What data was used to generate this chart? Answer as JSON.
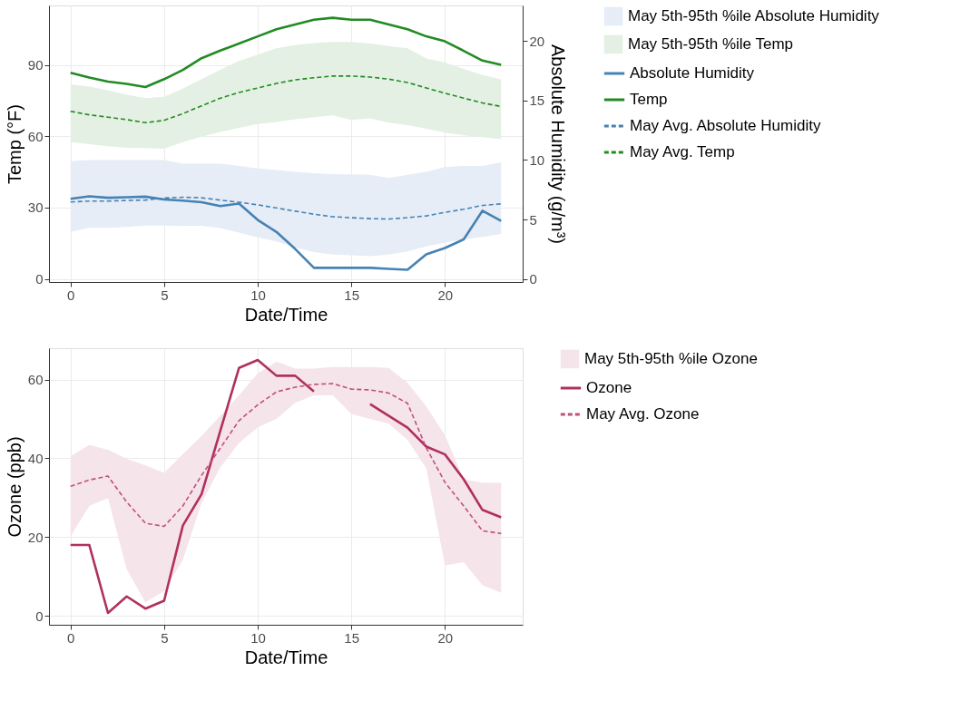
{
  "chart_data": [
    {
      "type": "line",
      "xlabel": "Date/Time",
      "ylabel": "Temp (°F)",
      "y2label": "Absolute Humidity (g/m³)",
      "x": [
        0,
        1,
        2,
        3,
        4,
        5,
        6,
        7,
        8,
        9,
        10,
        11,
        12,
        13,
        14,
        15,
        16,
        17,
        18,
        19,
        20,
        21,
        22,
        23
      ],
      "xlim": [
        -1.15,
        24.15
      ],
      "xticks": [
        0,
        5,
        10,
        15,
        20
      ],
      "ylim": [
        -1.3,
        115
      ],
      "yticks": [
        0,
        30,
        60,
        90
      ],
      "y2lim": [
        -0.26,
        23
      ],
      "y2ticks": [
        0,
        5,
        10,
        15,
        20
      ],
      "grid": true,
      "legend": "right",
      "series": [
        {
          "name": "May 5th-95th %ile Absolute Humidity",
          "type": "area",
          "axis": "y2",
          "color": "#e6edf6",
          "values": [
            null,
            null,
            null,
            null,
            null,
            null,
            null,
            null,
            null,
            null,
            null,
            null,
            null,
            null,
            null,
            null,
            null,
            null,
            null,
            null,
            null,
            null,
            null,
            null
          ]
        },
        {
          "name": "May 5th-95th %ile Temp",
          "type": "area",
          "color": "#e3f0e3",
          "values": [
            null,
            null,
            null,
            null,
            null,
            null,
            null,
            null,
            null,
            null,
            null,
            null,
            null,
            null,
            null,
            null,
            null,
            null,
            null,
            null,
            null,
            null,
            null,
            null
          ]
        },
        {
          "name": "Absolute Humidity",
          "axis": "y2",
          "color": "#4682b4",
          "line_style": "solid",
          "values": [
            6.74,
            6.95,
            6.82,
            6.87,
            6.92,
            6.68,
            6.58,
            6.45,
            6.13,
            6.34,
            4.96,
            3.95,
            2.52,
            0.93,
            0.93,
            0.93,
            0.93,
            0.85,
            0.77,
            2.07,
            2.6,
            3.32,
            5.73,
            4.88
          ]
        },
        {
          "name": "Temp",
          "color": "#228b22",
          "line_style": "solid",
          "values": [
            86.7,
            84.7,
            83,
            82,
            80.7,
            84,
            87.9,
            92.8,
            96,
            99,
            102,
            105,
            107,
            109,
            109.8,
            109,
            109,
            107,
            105,
            102,
            99.9,
            95.9,
            91.8,
            90
          ]
        },
        {
          "name": "May Avg. Absolute Humidity",
          "axis": "y2",
          "color": "#4682b4",
          "line_style": "dashed",
          "values": [
            6.47,
            6.55,
            6.55,
            6.6,
            6.63,
            6.8,
            6.87,
            6.82,
            6.63,
            6.45,
            6.23,
            5.97,
            5.7,
            5.44,
            5.23,
            5.15,
            5.07,
            5.04,
            5.15,
            5.3,
            5.6,
            5.86,
            6.18,
            6.31
          ],
          "lower": [
            3.95,
            4.3,
            4.3,
            4.38,
            4.48,
            4.48,
            4.46,
            4.46,
            4.27,
            3.9,
            3.5,
            3.16,
            2.63,
            2.25,
            2.04,
            1.99,
            1.91,
            2.04,
            2.31,
            2.73,
            3.05,
            3.32,
            3.53,
            3.79
          ],
          "upper": [
            9.9,
            10,
            10,
            10,
            10,
            10,
            9.7,
            9.7,
            9.7,
            9.5,
            9.3,
            9.15,
            9,
            8.9,
            8.8,
            8.8,
            8.75,
            8.5,
            8.75,
            9,
            9.4,
            9.5,
            9.5,
            9.8
          ]
        },
        {
          "name": "May Avg. Temp",
          "color": "#228b22",
          "line_style": "dashed",
          "values": [
            70.5,
            69,
            68,
            67,
            65.7,
            66.7,
            69.5,
            72.8,
            76,
            78.4,
            80.3,
            82.2,
            83.7,
            84.6,
            85.3,
            85.3,
            84.9,
            84,
            82.6,
            80.3,
            78.1,
            76,
            74,
            72.5
          ],
          "lower": [
            57.5,
            56.7,
            55.8,
            55.1,
            55,
            54.8,
            57.5,
            59.8,
            61.8,
            63.5,
            65.1,
            66,
            67.1,
            68,
            68.8,
            66.9,
            67.5,
            65.7,
            64.7,
            63.1,
            61.5,
            60.4,
            59.6,
            58.8
          ],
          "upper": [
            81.8,
            80.9,
            79.3,
            77.4,
            76,
            76.6,
            80,
            84,
            87.9,
            91.6,
            94.3,
            97,
            98.3,
            99.2,
            99.7,
            99.7,
            99,
            97.9,
            97,
            92.7,
            91,
            88.3,
            85.7,
            83.9
          ]
        }
      ]
    },
    {
      "type": "line",
      "xlabel": "Date/Time",
      "ylabel": "Ozone (ppb)",
      "x": [
        0,
        1,
        2,
        3,
        4,
        5,
        6,
        7,
        8,
        9,
        10,
        11,
        12,
        13,
        14,
        15,
        16,
        17,
        18,
        19,
        20,
        21,
        22,
        23
      ],
      "xlim": [
        -1.15,
        24.15
      ],
      "xticks": [
        0,
        5,
        10,
        15,
        20
      ],
      "ylim": [
        -2.3,
        68
      ],
      "yticks": [
        0,
        20,
        40,
        60
      ],
      "grid": true,
      "legend": "right",
      "series": [
        {
          "name": "May 5th-95th %ile Ozone",
          "type": "area",
          "color": "#f5e4ea",
          "values": [
            null,
            null,
            null,
            null,
            null,
            null,
            null,
            null,
            null,
            null,
            null,
            null,
            null,
            null,
            null,
            null,
            null,
            null,
            null,
            null,
            null,
            null,
            null,
            null
          ]
        },
        {
          "name": "Ozone",
          "color": "#b03060",
          "line_style": "solid",
          "values": [
            18,
            18,
            0.7,
            4.9,
            1.8,
            3.8,
            22.9,
            30.9,
            47,
            63,
            65,
            61,
            61,
            57,
            null,
            null,
            53.8,
            50.8,
            47.8,
            43,
            41,
            34.7,
            26.9,
            25
          ]
        },
        {
          "name": "May Avg. Ozone",
          "color": "#c0507a",
          "line_style": "dashed",
          "values": [
            32.9,
            34.5,
            35.5,
            28.9,
            23.5,
            22.7,
            27.9,
            35.7,
            42.6,
            49.6,
            53.6,
            56.9,
            58.1,
            58.8,
            59,
            57.6,
            57.4,
            56.6,
            54,
            42.7,
            33.9,
            27.9,
            21.6,
            20.9
          ],
          "lower": [
            20.2,
            27.9,
            29.9,
            11.8,
            3.4,
            6.3,
            14.2,
            28.7,
            37.7,
            43.9,
            47.9,
            50,
            54.1,
            56,
            56.1,
            51.3,
            50,
            48.8,
            44.7,
            37.5,
            12.8,
            13.6,
            7.8,
            5.8
          ],
          "upper": [
            40.5,
            43.4,
            42.2,
            39.9,
            38.2,
            36.3,
            41.1,
            45.7,
            50.8,
            56,
            61.6,
            64.6,
            62.8,
            62.8,
            63.2,
            63.2,
            63.2,
            63,
            59.2,
            53.2,
            45.9,
            34.7,
            33.8,
            33.8
          ]
        }
      ]
    }
  ]
}
